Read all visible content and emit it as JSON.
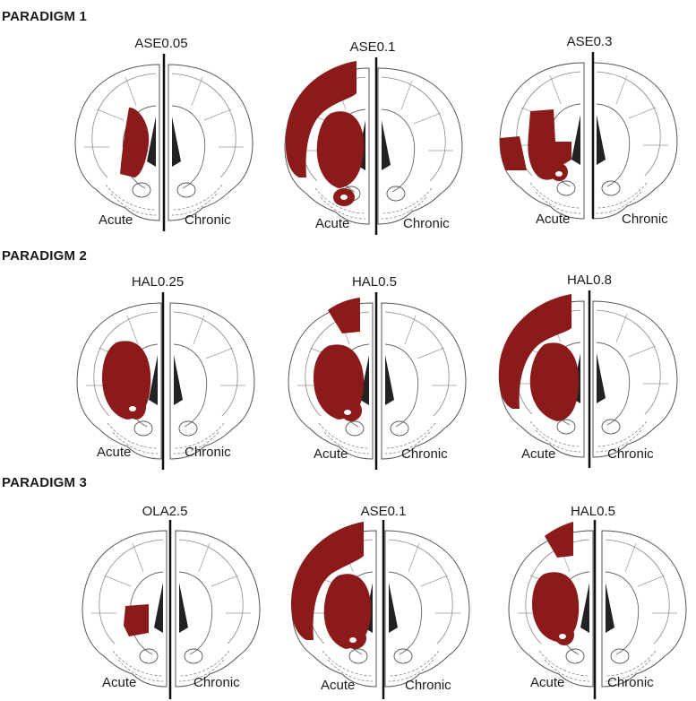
{
  "colors": {
    "lesion": "#8b1a1a",
    "outline": "#555555",
    "divider": "#111111"
  },
  "paradigms": [
    {
      "title": "PARADIGM 1",
      "panels": [
        {
          "title": "ASE0.05",
          "left": "Acute",
          "right": "Chronic"
        },
        {
          "title": "ASE0.1",
          "left": "Acute",
          "right": "Chronic"
        },
        {
          "title": "ASE0.3",
          "left": "Acute",
          "right": "Chronic"
        }
      ]
    },
    {
      "title": "PARADIGM 2",
      "panels": [
        {
          "title": "HAL0.25",
          "left": "Acute",
          "right": "Chronic"
        },
        {
          "title": "HAL0.5",
          "left": "Acute",
          "right": "Chronic"
        },
        {
          "title": "HAL0.8",
          "left": "Acute",
          "right": "Chronic"
        }
      ]
    },
    {
      "title": "PARADIGM 3",
      "panels": [
        {
          "title": "OLA2.5",
          "left": "Acute",
          "right": "Chronic"
        },
        {
          "title": "ASE0.1",
          "left": "Acute",
          "right": "Chronic"
        },
        {
          "title": "HAL0.5",
          "left": "Acute",
          "right": "Chronic"
        }
      ]
    }
  ]
}
